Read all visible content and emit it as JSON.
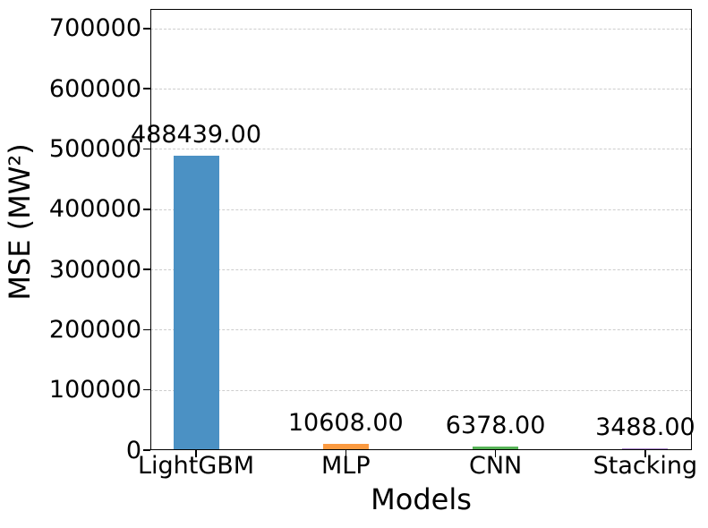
{
  "chart_data": {
    "type": "bar",
    "title": "",
    "xlabel": "Models",
    "ylabel": "MSE (MW²)",
    "categories": [
      "LightGBM",
      "MLP",
      "CNN",
      "Stacking"
    ],
    "values": [
      488439,
      10608,
      6378,
      3488
    ],
    "value_labels": [
      "488439.00",
      "10608.00",
      "6378.00",
      "3488.00"
    ],
    "bar_colors": [
      "#4B91C4",
      "#FB9A40",
      "#56B356",
      "#A985CA"
    ],
    "yticks": [
      0,
      100000,
      200000,
      300000,
      400000,
      500000,
      600000,
      700000
    ],
    "ytick_labels": [
      "0",
      "100000",
      "200000",
      "300000",
      "400000",
      "500000",
      "600000",
      "700000"
    ],
    "ylim": [
      0,
      732500
    ],
    "grid": "horizontal-dashed",
    "grid_color": "#cdcdcd",
    "legend": "none",
    "spine_color": "#000000",
    "text_color": "#000000",
    "background_color": "#ffffff"
  }
}
